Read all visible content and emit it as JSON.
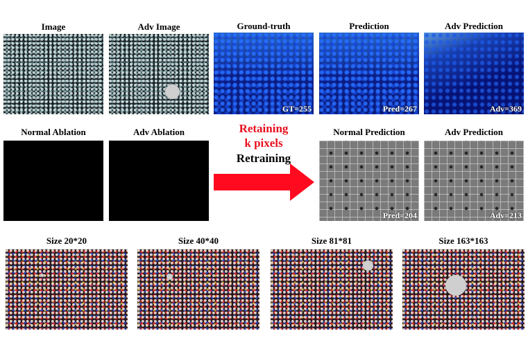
{
  "row1": {
    "titles": [
      "Image",
      "Adv Image",
      "Ground-truth",
      "Prediction",
      "Adv Prediction"
    ],
    "values": [
      "GT=255",
      "Pred=267",
      "Adv=369"
    ]
  },
  "row2": {
    "titles": [
      "Normal Ablation",
      "Adv Ablation",
      "Normal Prediction",
      "Adv Prediction"
    ],
    "values": [
      "Pred=204",
      "Adv=213"
    ]
  },
  "middle": {
    "line1": "Retaining",
    "line2": "k pixels",
    "line3": "Retraining",
    "red_color": "#e8101f",
    "arrow_color": "#ff0a1e"
  },
  "row3": {
    "titles": [
      "Size 20*20",
      "Size 40*40",
      "Size 81*81",
      "Size 163*163"
    ]
  }
}
